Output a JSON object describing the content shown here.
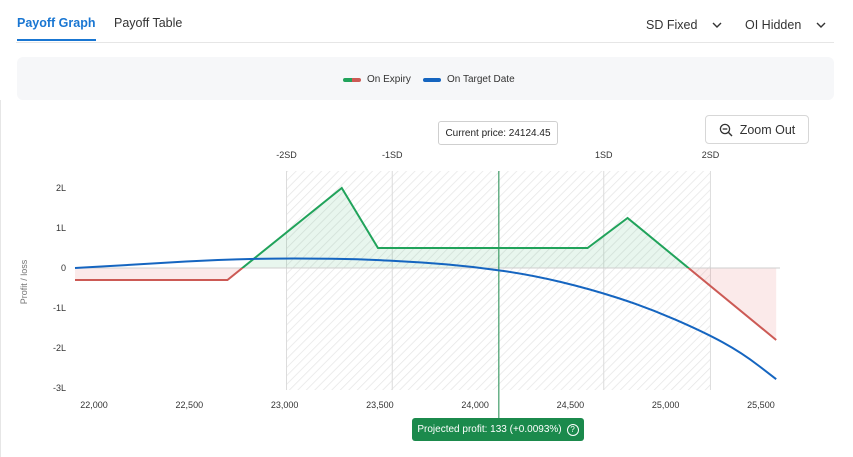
{
  "tabs": [
    {
      "label": "Payoff Graph",
      "active": true
    },
    {
      "label": "Payoff Table",
      "active": false
    }
  ],
  "dropdowns": {
    "sd": {
      "label": "SD Fixed"
    },
    "oi": {
      "label": "OI Hidden"
    }
  },
  "legend": [
    {
      "label": "On Expiry",
      "colors": [
        "#21a35b",
        "#cc5a55"
      ]
    },
    {
      "label": "On Target Date",
      "colors": [
        "#1565c0"
      ]
    }
  ],
  "zoom_button": {
    "label": "Zoom Out",
    "icon": "zoom-out-icon"
  },
  "current_price": {
    "label": "Current price: 24124.45"
  },
  "projected_profit": {
    "label": "Projected profit: 133 (+0.0093%)",
    "icon": "help-icon"
  },
  "chart_data": {
    "type": "line",
    "ylabel": "Profit / loss",
    "xlim": [
      21900,
      25600
    ],
    "ylim": [
      -3000,
      2000
    ],
    "x_ticks": [
      {
        "value": 22000,
        "label": "22,000"
      },
      {
        "value": 22500,
        "label": "22,500"
      },
      {
        "value": 23000,
        "label": "23,000"
      },
      {
        "value": 23500,
        "label": "23,500"
      },
      {
        "value": 24000,
        "label": "24,000"
      },
      {
        "value": 24500,
        "label": "24,500"
      },
      {
        "value": 25000,
        "label": "25,000"
      },
      {
        "value": 25500,
        "label": "25,500"
      }
    ],
    "y_ticks": [
      {
        "value": 2000,
        "label": "2L"
      },
      {
        "value": 1000,
        "label": "1L"
      },
      {
        "value": 0,
        "label": "0"
      },
      {
        "value": -1000,
        "label": "-1L"
      },
      {
        "value": -2000,
        "label": "-2L"
      },
      {
        "value": -3000,
        "label": "-3L"
      }
    ],
    "sd_markers": [
      {
        "value": 23010,
        "label": "-2SD"
      },
      {
        "value": 23565,
        "label": "-1SD"
      },
      {
        "value": 24675,
        "label": "1SD"
      },
      {
        "value": 25235,
        "label": "2SD"
      }
    ],
    "current_price": 24124.45,
    "series": [
      {
        "name": "On Expiry",
        "color_profit": "#21a35b",
        "color_loss": "#cc5a55",
        "x": [
          21900,
          22700,
          23300,
          23490,
          24590,
          24800,
          25580
        ],
        "y": [
          -300,
          -300,
          2000,
          500,
          500,
          1250,
          -1800
        ]
      },
      {
        "name": "On Target Date",
        "color": "#1565c0",
        "x": [
          21900,
          22200,
          22500,
          22800,
          23100,
          23400,
          23700,
          24000,
          24300,
          24600,
          24900,
          25200,
          25400,
          25580
        ],
        "y": [
          0,
          80,
          170,
          230,
          240,
          220,
          150,
          30,
          -180,
          -520,
          -980,
          -1600,
          -2120,
          -2780
        ]
      }
    ]
  }
}
